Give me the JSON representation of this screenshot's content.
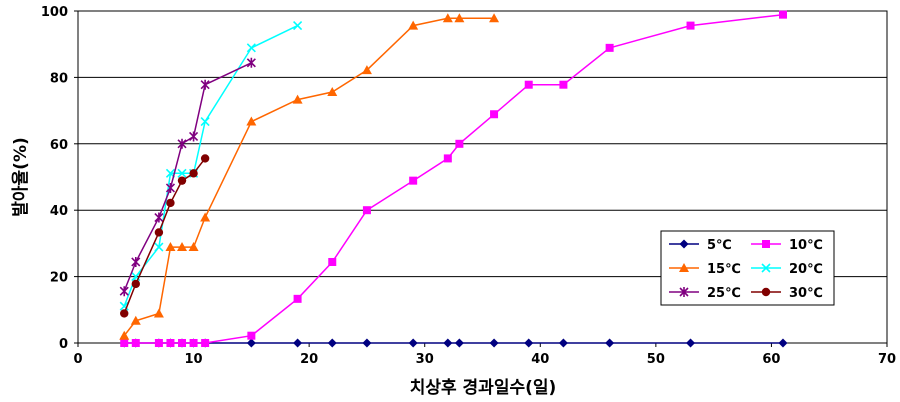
{
  "chart_data": {
    "type": "line",
    "xlabel": "치상후 경과일수(일)",
    "ylabel": "발아율(%)",
    "xlim": [
      0,
      70
    ],
    "ylim": [
      0,
      100
    ],
    "xticks": [
      "0",
      "10",
      "20",
      "30",
      "40",
      "50",
      "60",
      "70"
    ],
    "yticks": [
      "0",
      "20",
      "40",
      "60",
      "80",
      "100"
    ],
    "grid": "horizontal",
    "legend_placement": "bottom-right",
    "series": [
      {
        "name": "5℃",
        "color": "#000080",
        "marker": "diamond",
        "x": [
          4,
          5,
          7,
          8,
          9,
          10,
          11,
          15,
          19,
          22,
          25,
          29,
          32,
          33,
          36,
          39,
          42,
          46,
          53,
          61
        ],
        "y": [
          0,
          0,
          0,
          0,
          0,
          0,
          0,
          0,
          0,
          0,
          0,
          0,
          0,
          0,
          0,
          0,
          0,
          0,
          0,
          0
        ]
      },
      {
        "name": "10℃",
        "color": "#ff00ff",
        "marker": "square",
        "x": [
          4,
          5,
          7,
          8,
          9,
          10,
          11,
          15,
          19,
          22,
          25,
          29,
          32,
          33,
          36,
          39,
          42,
          46,
          53,
          61
        ],
        "y": [
          0,
          0,
          0,
          0,
          0,
          0,
          0,
          2.2,
          13.3,
          24.4,
          40,
          48.9,
          55.6,
          60,
          68.9,
          77.8,
          77.8,
          88.9,
          95.6,
          98.9
        ]
      },
      {
        "name": "15℃",
        "color": "#ff6600",
        "marker": "triangle",
        "x": [
          4,
          5,
          7,
          8,
          9,
          10,
          11,
          15,
          19,
          22,
          25,
          29,
          32,
          33,
          36
        ],
        "y": [
          2.2,
          6.7,
          8.9,
          28.9,
          28.9,
          28.9,
          37.8,
          66.7,
          73.3,
          75.6,
          82.2,
          95.6,
          97.8,
          97.8,
          97.8
        ]
      },
      {
        "name": "20℃",
        "color": "#00ffff",
        "marker": "x",
        "x": [
          4,
          5,
          7,
          8,
          9,
          10,
          11,
          15,
          19
        ],
        "y": [
          11.1,
          20,
          28.9,
          51.1,
          51.1,
          51.1,
          66.7,
          88.9,
          95.6
        ]
      },
      {
        "name": "25℃",
        "color": "#800080",
        "marker": "star",
        "x": [
          4,
          5,
          7,
          8,
          9,
          10,
          11,
          15
        ],
        "y": [
          15.6,
          24.4,
          37.8,
          46.7,
          60,
          62.2,
          77.8,
          84.4
        ]
      },
      {
        "name": "30℃",
        "color": "#800000",
        "marker": "circle",
        "x": [
          4,
          5,
          7,
          8,
          9,
          10,
          11
        ],
        "y": [
          8.9,
          17.8,
          33.3,
          42.2,
          48.9,
          51.1,
          55.6
        ]
      }
    ]
  }
}
